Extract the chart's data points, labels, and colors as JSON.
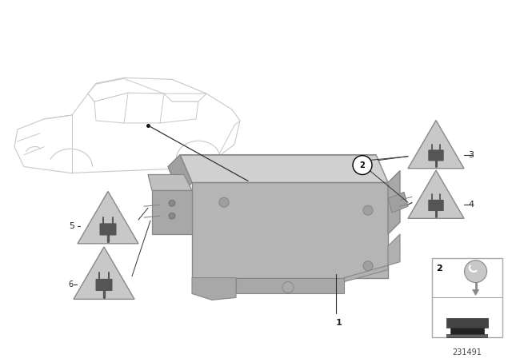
{
  "bg_color": "#ffffff",
  "diagram_id": "231491",
  "text_color": "#222222",
  "car_edge": "#cccccc",
  "hub_face_color": "#b8b8b8",
  "hub_top_color": "#d0d0d0",
  "hub_side_color": "#a0a0a0",
  "hub_edge": "#888888",
  "tri_fill": "#c8c8c8",
  "tri_edge": "#888888",
  "plug_color": "#555555",
  "line_color": "#555555",
  "inset_edge": "#aaaaaa",
  "screw_color": "#c0c0c0",
  "bracket_color": "#555555"
}
